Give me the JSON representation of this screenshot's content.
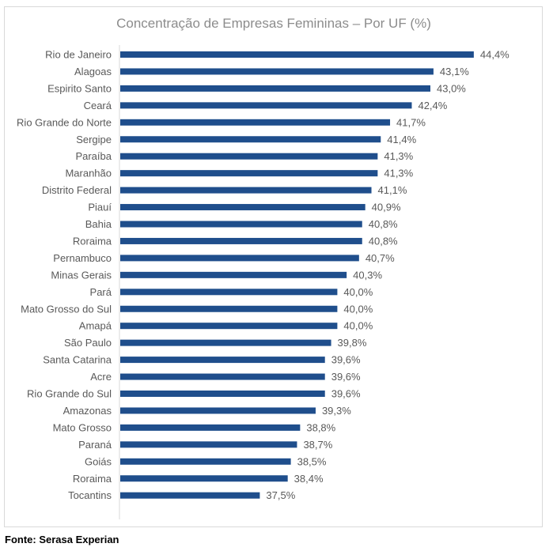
{
  "chart_data": {
    "type": "bar",
    "orientation": "horizontal",
    "title": "Concentração de Empresas Femininas – Por UF (%)",
    "categories": [
      "Rio de Janeiro",
      "Alagoas",
      "Espirito Santo",
      "Ceará",
      "Rio Grande do Norte",
      "Sergipe",
      "Paraíba",
      "Maranhão",
      "Distrito Federal",
      "Piauí",
      "Bahia",
      "Roraima",
      "Pernambuco",
      "Minas Gerais",
      "Pará",
      "Mato Grosso do Sul",
      "Amapá",
      "São Paulo",
      "Santa Catarina",
      "Acre",
      "Rio Grande do Sul",
      "Amazonas",
      "Mato Grosso",
      "Paraná",
      "Goiás",
      "Roraima",
      "Tocantins"
    ],
    "values": [
      44.4,
      43.1,
      43.0,
      42.4,
      41.7,
      41.4,
      41.3,
      41.3,
      41.1,
      40.9,
      40.8,
      40.8,
      40.7,
      40.3,
      40.0,
      40.0,
      40.0,
      39.8,
      39.6,
      39.6,
      39.6,
      39.3,
      38.8,
      38.7,
      38.5,
      38.4,
      37.5
    ],
    "value_labels": [
      "44,4%",
      "43,1%",
      "43,0%",
      "42,4%",
      "41,7%",
      "41,4%",
      "41,3%",
      "41,3%",
      "41,1%",
      "40,9%",
      "40,8%",
      "40,8%",
      "40,7%",
      "40,3%",
      "40,0%",
      "40,0%",
      "40,0%",
      "39,8%",
      "39,6%",
      "39,6%",
      "39,6%",
      "39,3%",
      "38,8%",
      "38,7%",
      "38,5%",
      "38,4%",
      "37,5%"
    ],
    "xlim": [
      33,
      45.5
    ],
    "grid": false,
    "bar_color": "#1f4e8c"
  },
  "source_note": "Fonte: Serasa Experian"
}
